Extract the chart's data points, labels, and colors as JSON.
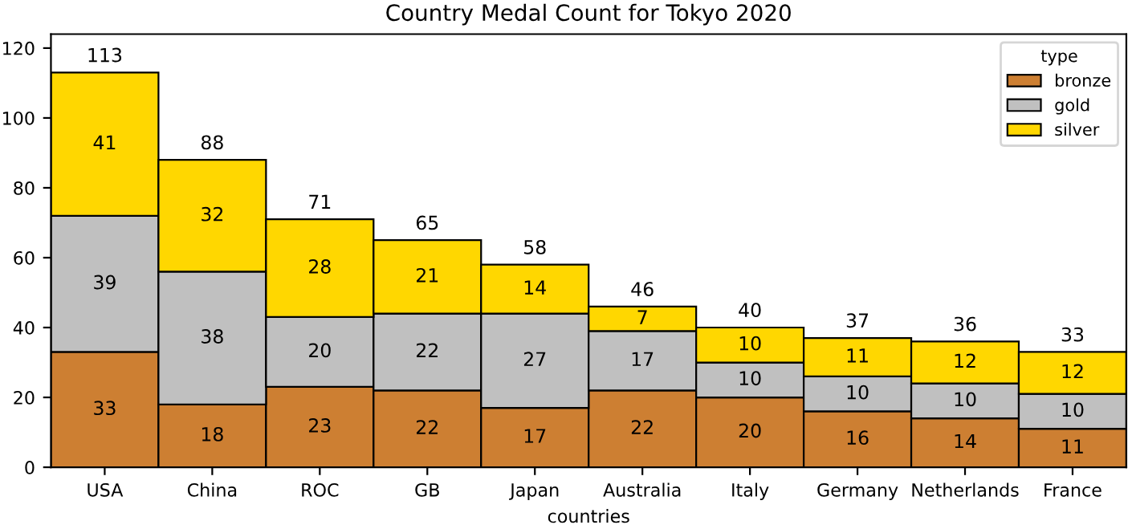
{
  "chart_data": {
    "type": "bar",
    "title": "Country Medal Count for Tokyo 2020",
    "xlabel": "countries",
    "legend_title": "type",
    "categories": [
      "USA",
      "China",
      "ROC",
      "GB",
      "Japan",
      "Australia",
      "Italy",
      "Germany",
      "Netherlands",
      "France"
    ],
    "stacked": true,
    "series": [
      {
        "name": "bronze",
        "color": "#cd7f32",
        "values": [
          33,
          18,
          23,
          22,
          17,
          22,
          20,
          16,
          14,
          11
        ]
      },
      {
        "name": "gold",
        "color": "#c0c0c0",
        "values": [
          39,
          38,
          20,
          22,
          27,
          17,
          10,
          10,
          10,
          10
        ]
      },
      {
        "name": "silver",
        "color": "#ffd700",
        "values": [
          41,
          32,
          28,
          21,
          14,
          7,
          10,
          11,
          12,
          12
        ]
      }
    ],
    "data_labels": true,
    "totals": [
      "113",
      "88",
      "71",
      "65",
      "58",
      "46",
      "40",
      "37",
      "36",
      "33"
    ],
    "ylim": [
      0,
      124
    ],
    "yticks": [
      0,
      20,
      40,
      60,
      80,
      100,
      120
    ],
    "legend": "top right",
    "grid": false
  }
}
